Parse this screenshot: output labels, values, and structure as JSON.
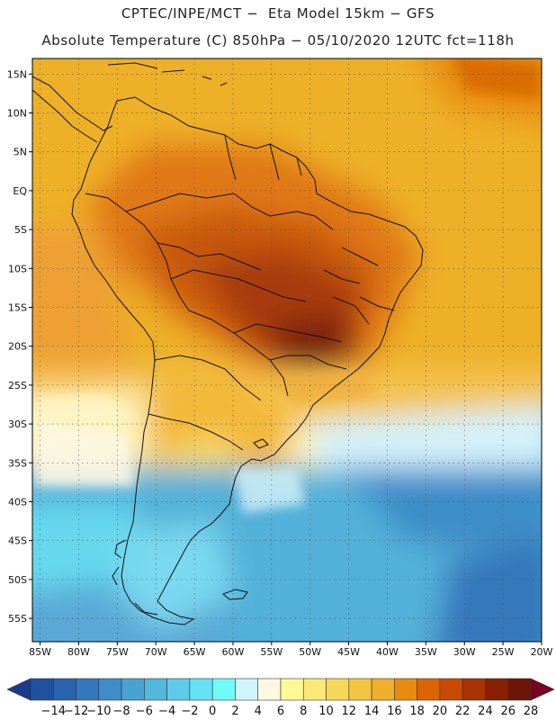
{
  "header": {
    "line1": "CPTEC/INPE/MCT −  Eta Model 15km − GFS",
    "line2": "Absolute Temperature (C) 850hPa − 05/10/2020 12UTC fct=118h"
  },
  "map": {
    "lat_labels": [
      "15N",
      "10N",
      "5N",
      "EQ",
      "5S",
      "10S",
      "15S",
      "20S",
      "25S",
      "30S",
      "35S",
      "40S",
      "45S",
      "50S",
      "55S"
    ],
    "lat_values": [
      15,
      10,
      5,
      0,
      -5,
      -10,
      -15,
      -20,
      -25,
      -30,
      -35,
      -40,
      -45,
      -50,
      -55
    ],
    "lon_labels": [
      "85W",
      "80W",
      "75W",
      "70W",
      "65W",
      "60W",
      "55W",
      "50W",
      "45W",
      "40W",
      "35W",
      "30W",
      "25W",
      "20W"
    ],
    "lon_values": [
      -85,
      -80,
      -75,
      -70,
      -65,
      -60,
      -55,
      -50,
      -45,
      -40,
      -35,
      -30,
      -25,
      -20
    ],
    "lon_range": [
      -86,
      -20
    ],
    "lat_range": [
      -58,
      17
    ]
  },
  "colorbar": {
    "labels": [
      "−14",
      "−12",
      "−10",
      "−8",
      "−6",
      "−4",
      "−2",
      "0",
      "2",
      "4",
      "6",
      "8",
      "10",
      "12",
      "14",
      "16",
      "18",
      "20",
      "22",
      "24",
      "26",
      "28"
    ],
    "colors": [
      "#1a3a8c",
      "#2050a0",
      "#2a63b0",
      "#3478bc",
      "#3e8dc8",
      "#48a3d2",
      "#52b8dc",
      "#5cccea",
      "#66e2f4",
      "#70fafa",
      "#d0f4fc",
      "#fff8e0",
      "#fef898",
      "#fce878",
      "#f8d858",
      "#f2c640",
      "#eeb028",
      "#e88a10",
      "#dc6400",
      "#c84a00",
      "#a83200",
      "#882000",
      "#6e1408",
      "#7a0020"
    ]
  }
}
